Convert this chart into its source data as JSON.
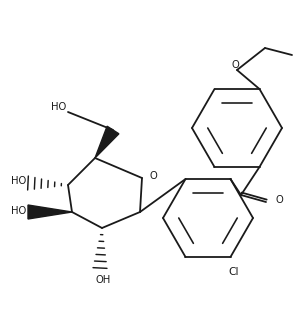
{
  "background": "#ffffff",
  "line_color": "#1a1a1a",
  "line_width": 1.3,
  "font_size": 7.2,
  "fig_width": 3.03,
  "fig_height": 3.1,
  "dpi": 100,
  "xlim": [
    0,
    303
  ],
  "ylim": [
    0,
    310
  ]
}
